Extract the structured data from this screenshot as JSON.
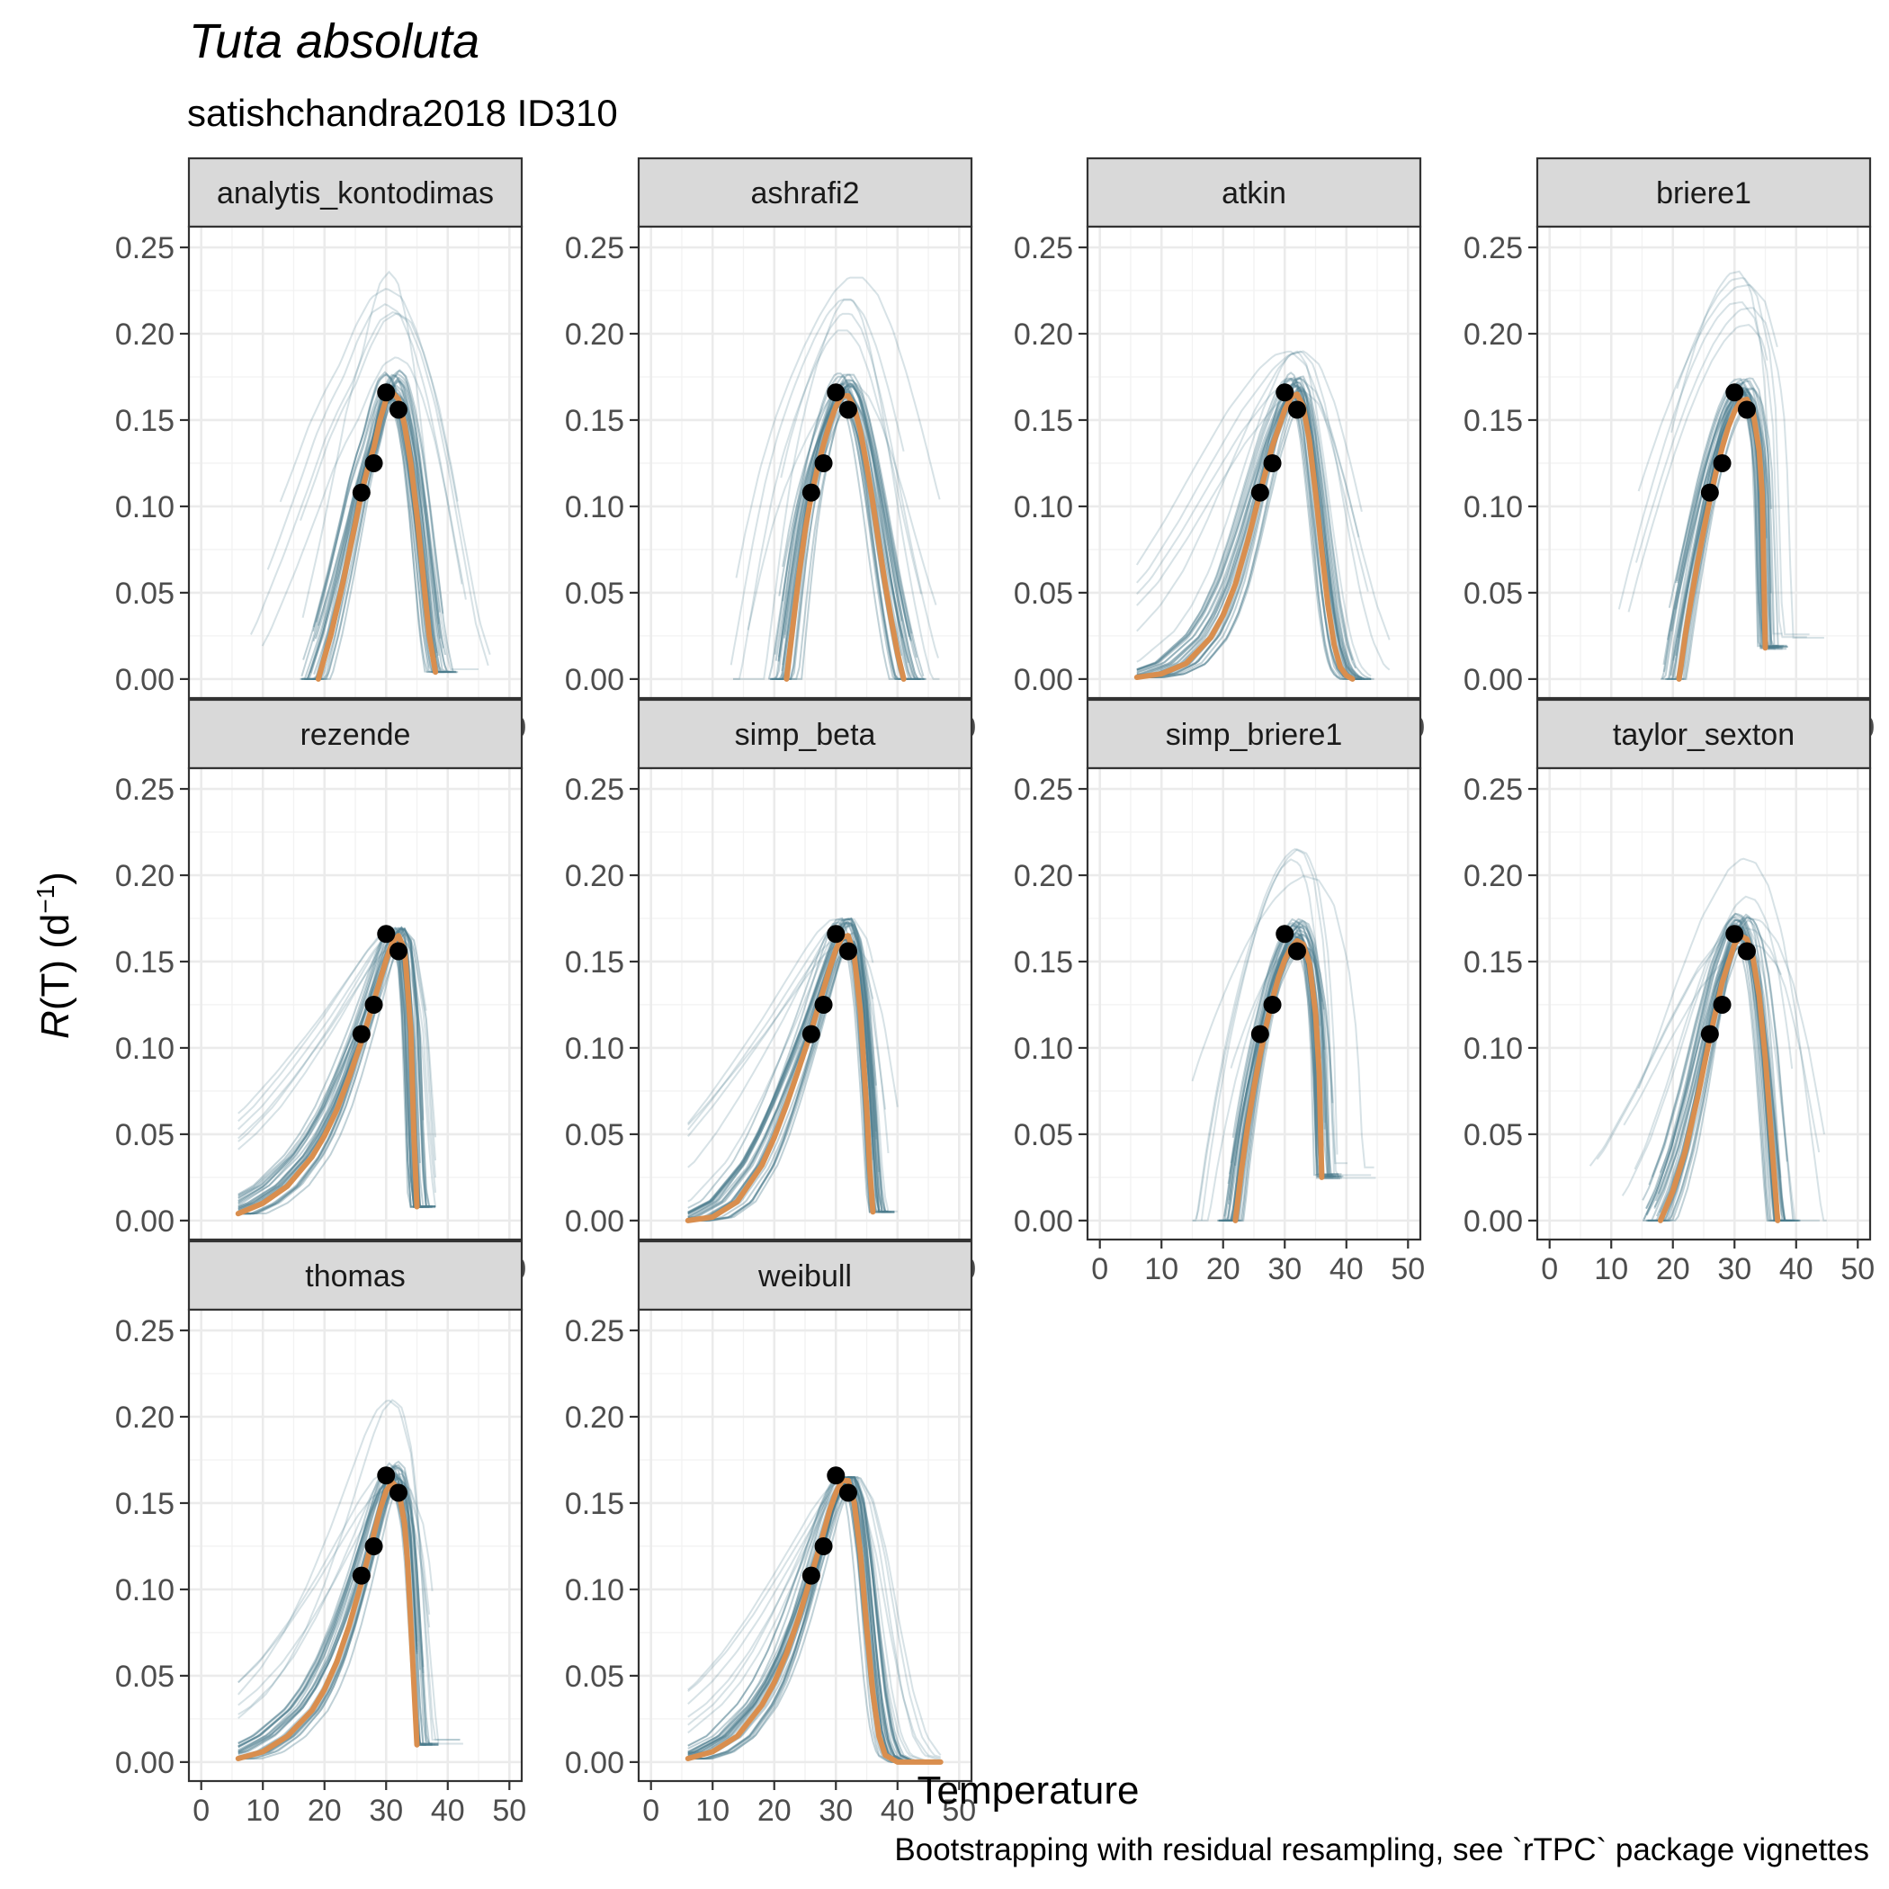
{
  "chart_data": {
    "type": "line",
    "title": "Tuta absoluta",
    "subtitle": "satishchandra2018 ID310",
    "xlabel": "Temperature",
    "ylabel": "R(T) (d⁻¹)",
    "ylabel_parts": {
      "italic": "R",
      "rest": "(T) (d",
      "sup": "−1",
      "close": ")"
    },
    "caption": "Bootstrapping with residual resampling, see `rTPC` package vignettes",
    "xlim": [
      -2,
      52
    ],
    "ylim": [
      -0.011,
      0.262
    ],
    "x_ticks": [
      0,
      10,
      20,
      30,
      40,
      50
    ],
    "y_ticks": [
      0.0,
      0.05,
      0.1,
      0.15,
      0.2,
      0.25
    ],
    "y_tick_labels": [
      "0.00",
      "0.05",
      "0.10",
      "0.15",
      "0.20",
      "0.25"
    ],
    "grid": true,
    "colors": {
      "fit": "#D98E4E",
      "bootstrap": "#4A7A8C",
      "points": "#000000",
      "strip_bg": "#D9D9D9",
      "grid": "#EBEBEB"
    },
    "observations": {
      "temperature": [
        26,
        28,
        30,
        32
      ],
      "rate": [
        0.108,
        0.125,
        0.166,
        0.156
      ]
    },
    "panels": [
      {
        "model": "analytis_kontodimas",
        "fit": {
          "x": [
            19,
            21,
            23,
            25,
            26,
            27,
            28,
            29,
            30,
            31,
            32,
            33,
            34,
            35,
            36,
            37,
            38
          ],
          "y": [
            0.0,
            0.025,
            0.056,
            0.09,
            0.108,
            0.122,
            0.134,
            0.15,
            0.162,
            0.166,
            0.162,
            0.147,
            0.125,
            0.095,
            0.06,
            0.025,
            0.004
          ]
        },
        "boot_range": {
          "x": [
            6,
            47
          ],
          "y_max": 0.25
        }
      },
      {
        "model": "ashrafi2",
        "fit": {
          "x": [
            22,
            23,
            24,
            25,
            26,
            27,
            28,
            29,
            30,
            31,
            32,
            33,
            34,
            35,
            36,
            37,
            38,
            39,
            40,
            41
          ],
          "y": [
            0.0,
            0.03,
            0.06,
            0.086,
            0.106,
            0.122,
            0.136,
            0.148,
            0.158,
            0.164,
            0.164,
            0.157,
            0.143,
            0.124,
            0.102,
            0.078,
            0.055,
            0.034,
            0.015,
            0.0
          ]
        },
        "boot_range": {
          "x": [
            6,
            47
          ],
          "y_max": 0.25
        }
      },
      {
        "model": "atkin",
        "fit": {
          "x": [
            6,
            10,
            14,
            18,
            20,
            22,
            24,
            26,
            28,
            30,
            31,
            32,
            33,
            34,
            35,
            36,
            37,
            38,
            39,
            40,
            41
          ],
          "y": [
            0.001,
            0.003,
            0.009,
            0.024,
            0.037,
            0.055,
            0.08,
            0.108,
            0.135,
            0.156,
            0.163,
            0.165,
            0.158,
            0.138,
            0.108,
            0.074,
            0.043,
            0.02,
            0.007,
            0.002,
            0.0
          ]
        },
        "boot_range": {
          "x": [
            6,
            47
          ],
          "y_max": 0.19
        }
      },
      {
        "model": "briere1",
        "fit": {
          "x": [
            21,
            22,
            23,
            24,
            25,
            26,
            27,
            28,
            29,
            30,
            31,
            32,
            33,
            34,
            34.5,
            35
          ],
          "y": [
            0.0,
            0.025,
            0.047,
            0.067,
            0.086,
            0.104,
            0.12,
            0.134,
            0.146,
            0.155,
            0.161,
            0.162,
            0.155,
            0.132,
            0.107,
            0.018
          ]
        },
        "boot_range": {
          "x": [
            6,
            46
          ],
          "y_max": 0.25
        }
      },
      {
        "model": "rezende",
        "fit": {
          "x": [
            6,
            10,
            14,
            18,
            20,
            22,
            24,
            26,
            27,
            28,
            29,
            30,
            31,
            32,
            33,
            34,
            34.5,
            35
          ],
          "y": [
            0.004,
            0.01,
            0.02,
            0.037,
            0.049,
            0.064,
            0.083,
            0.104,
            0.115,
            0.127,
            0.139,
            0.151,
            0.161,
            0.165,
            0.157,
            0.11,
            0.05,
            0.008
          ]
        },
        "boot_range": {
          "x": [
            6,
            38
          ],
          "y_max": 0.17
        }
      },
      {
        "model": "simp_beta",
        "fit": {
          "x": [
            6,
            10,
            14,
            18,
            20,
            22,
            24,
            26,
            28,
            29,
            30,
            31,
            32,
            33,
            34,
            35,
            35.5,
            36
          ],
          "y": [
            0.0,
            0.002,
            0.011,
            0.032,
            0.048,
            0.067,
            0.088,
            0.11,
            0.134,
            0.146,
            0.157,
            0.164,
            0.165,
            0.153,
            0.12,
            0.065,
            0.03,
            0.005
          ]
        },
        "boot_range": {
          "x": [
            6,
            44
          ],
          "y_max": 0.175
        }
      },
      {
        "model": "simp_briere1",
        "fit": {
          "x": [
            22,
            23,
            24,
            25,
            26,
            27,
            28,
            29,
            30,
            31,
            32,
            33,
            34,
            35,
            35.6,
            36
          ],
          "y": [
            0.0,
            0.03,
            0.055,
            0.077,
            0.096,
            0.113,
            0.128,
            0.141,
            0.151,
            0.158,
            0.162,
            0.16,
            0.149,
            0.12,
            0.085,
            0.025
          ]
        },
        "boot_range": {
          "x": [
            15,
            47
          ],
          "y_max": 0.24
        }
      },
      {
        "model": "taylor_sexton",
        "fit": {
          "x": [
            18,
            20,
            22,
            24,
            26,
            28,
            30,
            31,
            32,
            33,
            34,
            35,
            36,
            37
          ],
          "y": [
            0.0,
            0.017,
            0.04,
            0.071,
            0.106,
            0.138,
            0.16,
            0.165,
            0.163,
            0.152,
            0.13,
            0.094,
            0.047,
            0.0
          ]
        },
        "boot_range": {
          "x": [
            6,
            45
          ],
          "y_max": 0.25
        }
      },
      {
        "model": "thomas",
        "fit": {
          "x": [
            6,
            10,
            14,
            18,
            20,
            22,
            24,
            26,
            28,
            29,
            30,
            31,
            32,
            33,
            33.5,
            34,
            34.5,
            35
          ],
          "y": [
            0.002,
            0.006,
            0.015,
            0.03,
            0.042,
            0.058,
            0.079,
            0.104,
            0.132,
            0.146,
            0.157,
            0.162,
            0.158,
            0.138,
            0.115,
            0.08,
            0.045,
            0.01
          ]
        },
        "boot_range": {
          "x": [
            6,
            47
          ],
          "y_max": 0.21
        }
      },
      {
        "model": "weibull",
        "fit": {
          "x": [
            6,
            10,
            14,
            18,
            20,
            22,
            24,
            26,
            28,
            29,
            30,
            31,
            32,
            33,
            34,
            35,
            36,
            37,
            38,
            40,
            44,
            47
          ],
          "y": [
            0.002,
            0.006,
            0.015,
            0.033,
            0.046,
            0.063,
            0.084,
            0.108,
            0.133,
            0.146,
            0.156,
            0.163,
            0.163,
            0.15,
            0.12,
            0.078,
            0.04,
            0.015,
            0.004,
            0.0,
            0.0,
            0.0
          ]
        },
        "boot_range": {
          "x": [
            6,
            47
          ],
          "y_max": 0.165
        }
      }
    ]
  }
}
